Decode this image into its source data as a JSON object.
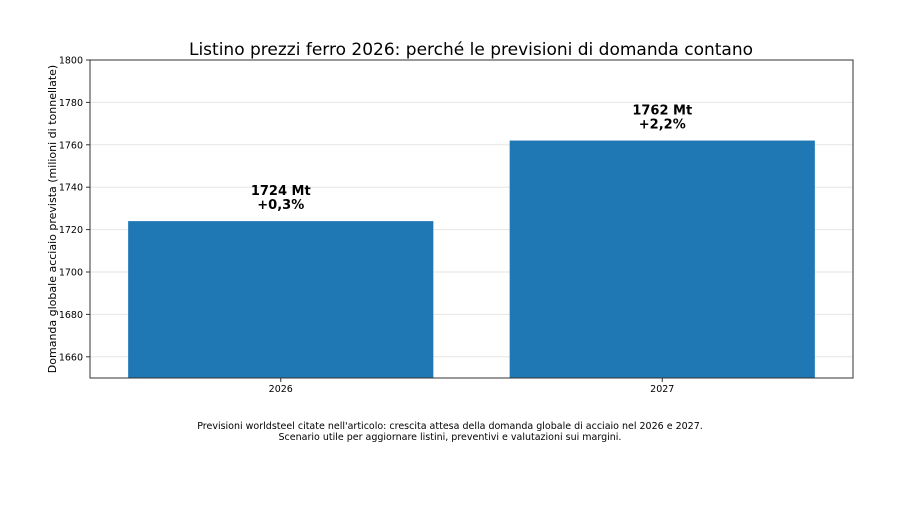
{
  "chart_data": {
    "type": "bar",
    "title": "Listino prezzi ferro 2026: perché le previsioni di domanda contano",
    "ylabel": "Domanda globale acciaio prevista (milioni di tonnellate)",
    "xlabel": "",
    "categories": [
      "2026",
      "2027"
    ],
    "values": [
      1724,
      1762
    ],
    "bar_labels": [
      "1724 Mt\n+0,3%",
      "1762 Mt\n+2,2%"
    ],
    "ylim": [
      1650,
      1800
    ],
    "yticks": [
      1660,
      1680,
      1700,
      1720,
      1740,
      1760,
      1780,
      1800
    ],
    "grid": "y",
    "bar_color": "#1f77b4"
  },
  "caption": {
    "line1": "Previsioni worldsteel citate nell'articolo: crescita attesa della domanda globale di acciaio nel 2026 e 2027.",
    "line2": "Scenario utile per aggiornare listini, preventivi e valutazioni sui margini."
  }
}
